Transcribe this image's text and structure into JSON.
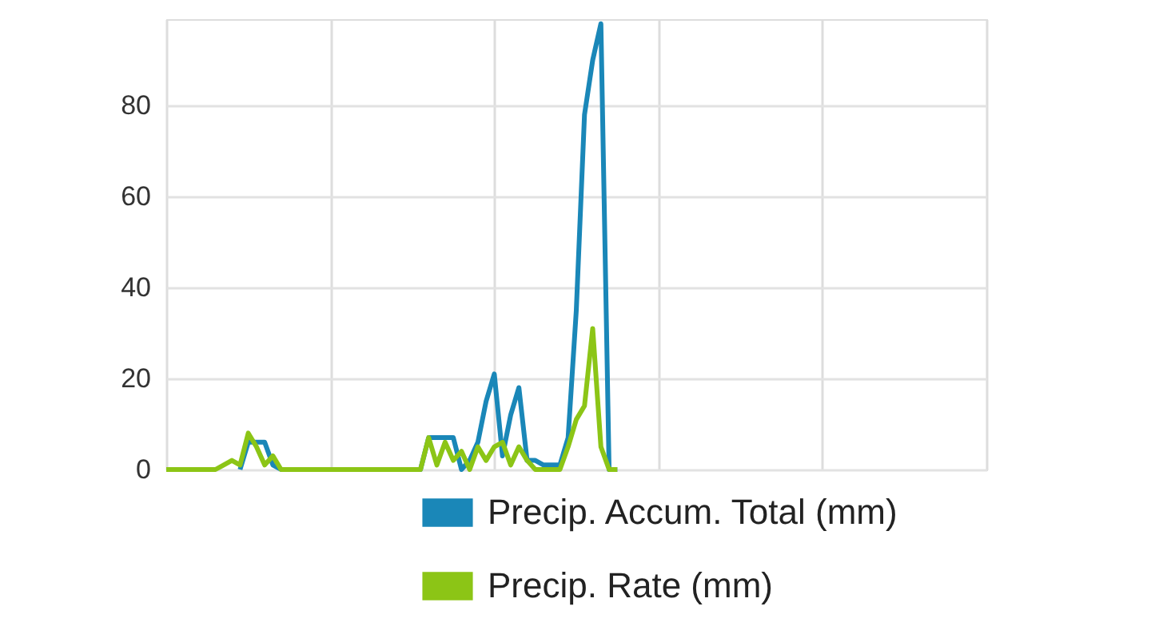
{
  "chart_data": {
    "type": "line",
    "ylim": [
      0,
      99
    ],
    "yticks": [
      0,
      20,
      40,
      60,
      80
    ],
    "grid": true,
    "tick_labels": "y",
    "legend": "bottom right",
    "marker": "none",
    "line_style": "solid",
    "categories": [
      null,
      null,
      null,
      null,
      null,
      null,
      null,
      null,
      null,
      null,
      null,
      null,
      null,
      null,
      null,
      null,
      null,
      null,
      null,
      null,
      null,
      null,
      null,
      null,
      null,
      null,
      null,
      null,
      null,
      null,
      null,
      null,
      null,
      null,
      null,
      null,
      null,
      null,
      null,
      null,
      null,
      null,
      null,
      null,
      null,
      null,
      null,
      null,
      null,
      null,
      null,
      null,
      null,
      null,
      null,
      null,
      null,
      null,
      null,
      null,
      null,
      null,
      null,
      null,
      null,
      null,
      null,
      null,
      null,
      null,
      null,
      null,
      null,
      null,
      null,
      null,
      null,
      null,
      null,
      null,
      null,
      null,
      null,
      null,
      null,
      null,
      null,
      null,
      null,
      null,
      null,
      null,
      null,
      null,
      null,
      null,
      null,
      null,
      null,
      null,
      null
    ],
    "series": [
      {
        "name": "Precip. Accum. Total (mm)",
        "color": "#1a87b8",
        "values": [
          null,
          null,
          null,
          null,
          null,
          null,
          null,
          null,
          null,
          0,
          6,
          6,
          6,
          1,
          0,
          0,
          0,
          0,
          0,
          0,
          0,
          0,
          0,
          0,
          0,
          0,
          0,
          0,
          0,
          0,
          0,
          0,
          7,
          7,
          7,
          7,
          0,
          2,
          6,
          15,
          21,
          3,
          12,
          18,
          2,
          2,
          1,
          1,
          1,
          7,
          35,
          78,
          90,
          98,
          0,
          0,
          null,
          null,
          null,
          null,
          null,
          null,
          null,
          null,
          null,
          null,
          null,
          null,
          null,
          null,
          null,
          null,
          null,
          null,
          null,
          null,
          null,
          null,
          null,
          null,
          null,
          null,
          null,
          null,
          null,
          null,
          null,
          null,
          null,
          null,
          null,
          null,
          null,
          null,
          null,
          null,
          null,
          null,
          null,
          null,
          null
        ]
      },
      {
        "name": "Precip. Rate (mm)",
        "color": "#8cc516",
        "values": [
          0,
          0,
          0,
          0,
          0,
          0,
          0,
          1,
          2,
          1,
          8,
          5,
          1,
          3,
          0,
          0,
          0,
          0,
          0,
          0,
          0,
          0,
          0,
          0,
          0,
          0,
          0,
          0,
          0,
          0,
          0,
          0,
          7,
          1,
          6,
          2,
          4,
          0,
          5,
          2,
          5,
          6,
          1,
          5,
          2,
          0,
          0,
          0,
          0,
          5,
          11,
          14,
          31,
          5,
          0,
          0,
          null,
          null,
          null,
          null,
          null,
          null,
          null,
          null,
          null,
          null,
          null,
          null,
          null,
          null,
          null,
          null,
          null,
          null,
          null,
          null,
          null,
          null,
          null,
          null,
          null,
          null,
          null,
          null,
          null,
          null,
          null,
          null,
          null,
          null,
          null,
          null,
          null,
          null,
          null,
          null,
          null,
          null,
          null,
          null,
          null
        ]
      }
    ]
  }
}
